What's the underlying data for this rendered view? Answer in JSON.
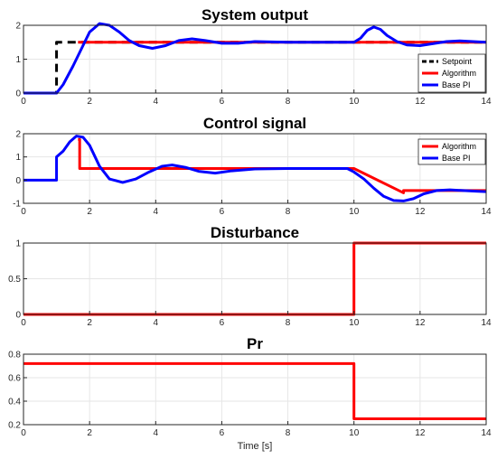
{
  "colors": {
    "algorithm": "#ff0000",
    "basepi": "#0000ff",
    "setpoint": "#000000",
    "grid": "#e6e6e6",
    "axis": "#262626"
  },
  "chart_data": [
    {
      "type": "line",
      "title": "System output",
      "xlim": [
        0,
        14
      ],
      "ylim": [
        0,
        2
      ],
      "xticks": [
        0,
        2,
        4,
        6,
        8,
        10,
        12,
        14
      ],
      "yticks": [
        0,
        1,
        2
      ],
      "ytick_labels": [
        "0",
        "1",
        "2"
      ],
      "grid": true,
      "legend": "right",
      "series": [
        {
          "name": "Setpoint",
          "color": "#000000",
          "dash": true,
          "x": [
            0,
            1,
            1,
            1.1,
            10,
            10,
            14
          ],
          "y": [
            0,
            0,
            1.5,
            1.5,
            1.5,
            1.5,
            1.5
          ]
        },
        {
          "name": "Algorithm",
          "color": "#ff0000",
          "x": [
            1.65,
            14
          ],
          "y": [
            1.5,
            1.5
          ]
        },
        {
          "name": "Base PI",
          "color": "#0000ff",
          "x": [
            0,
            1.0,
            1.2,
            1.5,
            1.8,
            2.0,
            2.3,
            2.6,
            2.9,
            3.2,
            3.5,
            3.9,
            4.3,
            4.7,
            5.1,
            5.5,
            6.0,
            6.5,
            7.0,
            8.0,
            9.0,
            10.0,
            10.2,
            10.4,
            10.6,
            10.8,
            11.0,
            11.3,
            11.6,
            12.0,
            12.4,
            12.8,
            13.2,
            13.6,
            14.0
          ],
          "y": [
            0,
            0,
            0.25,
            0.8,
            1.4,
            1.8,
            2.05,
            2.0,
            1.8,
            1.55,
            1.4,
            1.32,
            1.4,
            1.55,
            1.6,
            1.55,
            1.47,
            1.47,
            1.52,
            1.5,
            1.5,
            1.5,
            1.62,
            1.85,
            1.95,
            1.88,
            1.7,
            1.52,
            1.42,
            1.4,
            1.46,
            1.52,
            1.54,
            1.52,
            1.5
          ]
        }
      ]
    },
    {
      "type": "line",
      "title": "Control signal",
      "xlim": [
        0,
        14
      ],
      "ylim": [
        -1,
        2
      ],
      "xticks": [
        0,
        2,
        4,
        6,
        8,
        10,
        12,
        14
      ],
      "yticks": [
        -1,
        0,
        1,
        2
      ],
      "ytick_labels": [
        "-1",
        "0",
        "1",
        "2"
      ],
      "grid": true,
      "legend": "top-right",
      "series": [
        {
          "name": "Algorithm",
          "color": "#ff0000",
          "x": [
            1.65,
            1.7,
            1.7,
            10,
            10.0,
            11.5,
            11.5,
            14
          ],
          "y": [
            1.75,
            1.75,
            0.5,
            0.5,
            0.5,
            -0.55,
            -0.45,
            -0.45
          ]
        },
        {
          "name": "Base PI",
          "color": "#0000ff",
          "x": [
            0,
            1.0,
            1.0,
            1.2,
            1.4,
            1.6,
            1.8,
            2.0,
            2.3,
            2.6,
            3.0,
            3.4,
            3.8,
            4.2,
            4.5,
            4.9,
            5.3,
            5.8,
            6.3,
            7.0,
            8.0,
            9.0,
            9.8,
            10.0,
            10.3,
            10.6,
            10.9,
            11.2,
            11.5,
            11.8,
            12.1,
            12.5,
            12.9,
            13.3,
            13.7,
            14.0
          ],
          "y": [
            0,
            0,
            1.0,
            1.25,
            1.65,
            1.9,
            1.85,
            1.5,
            0.6,
            0.05,
            -0.1,
            0.05,
            0.35,
            0.6,
            0.65,
            0.55,
            0.38,
            0.3,
            0.4,
            0.48,
            0.5,
            0.5,
            0.5,
            0.35,
            0.05,
            -0.35,
            -0.7,
            -0.88,
            -0.9,
            -0.8,
            -0.6,
            -0.45,
            -0.42,
            -0.45,
            -0.48,
            -0.5
          ]
        }
      ]
    },
    {
      "type": "line",
      "title": "Disturbance",
      "xlim": [
        0,
        14
      ],
      "ylim": [
        0,
        1
      ],
      "xticks": [
        0,
        2,
        4,
        6,
        8,
        10,
        12,
        14
      ],
      "yticks": [
        0,
        0.5,
        1
      ],
      "ytick_labels": [
        "0",
        "0.5",
        "1"
      ],
      "grid": true,
      "series": [
        {
          "color": "#ff0000",
          "x": [
            0,
            10,
            10,
            14
          ],
          "y": [
            0,
            0,
            1,
            1
          ]
        }
      ]
    },
    {
      "type": "line",
      "title": "Pr",
      "xlabel": "Time [s]",
      "xlim": [
        0,
        14
      ],
      "ylim": [
        0.2,
        0.8
      ],
      "xticks": [
        0,
        2,
        4,
        6,
        8,
        10,
        12,
        14
      ],
      "yticks": [
        0.2,
        0.4,
        0.6,
        0.8
      ],
      "ytick_labels": [
        "0.2",
        "0.4",
        "0.6",
        "0.8"
      ],
      "grid": true,
      "series": [
        {
          "color": "#ff0000",
          "x": [
            0,
            10,
            10,
            14
          ],
          "y": [
            0.72,
            0.72,
            0.25,
            0.25
          ]
        }
      ]
    }
  ]
}
